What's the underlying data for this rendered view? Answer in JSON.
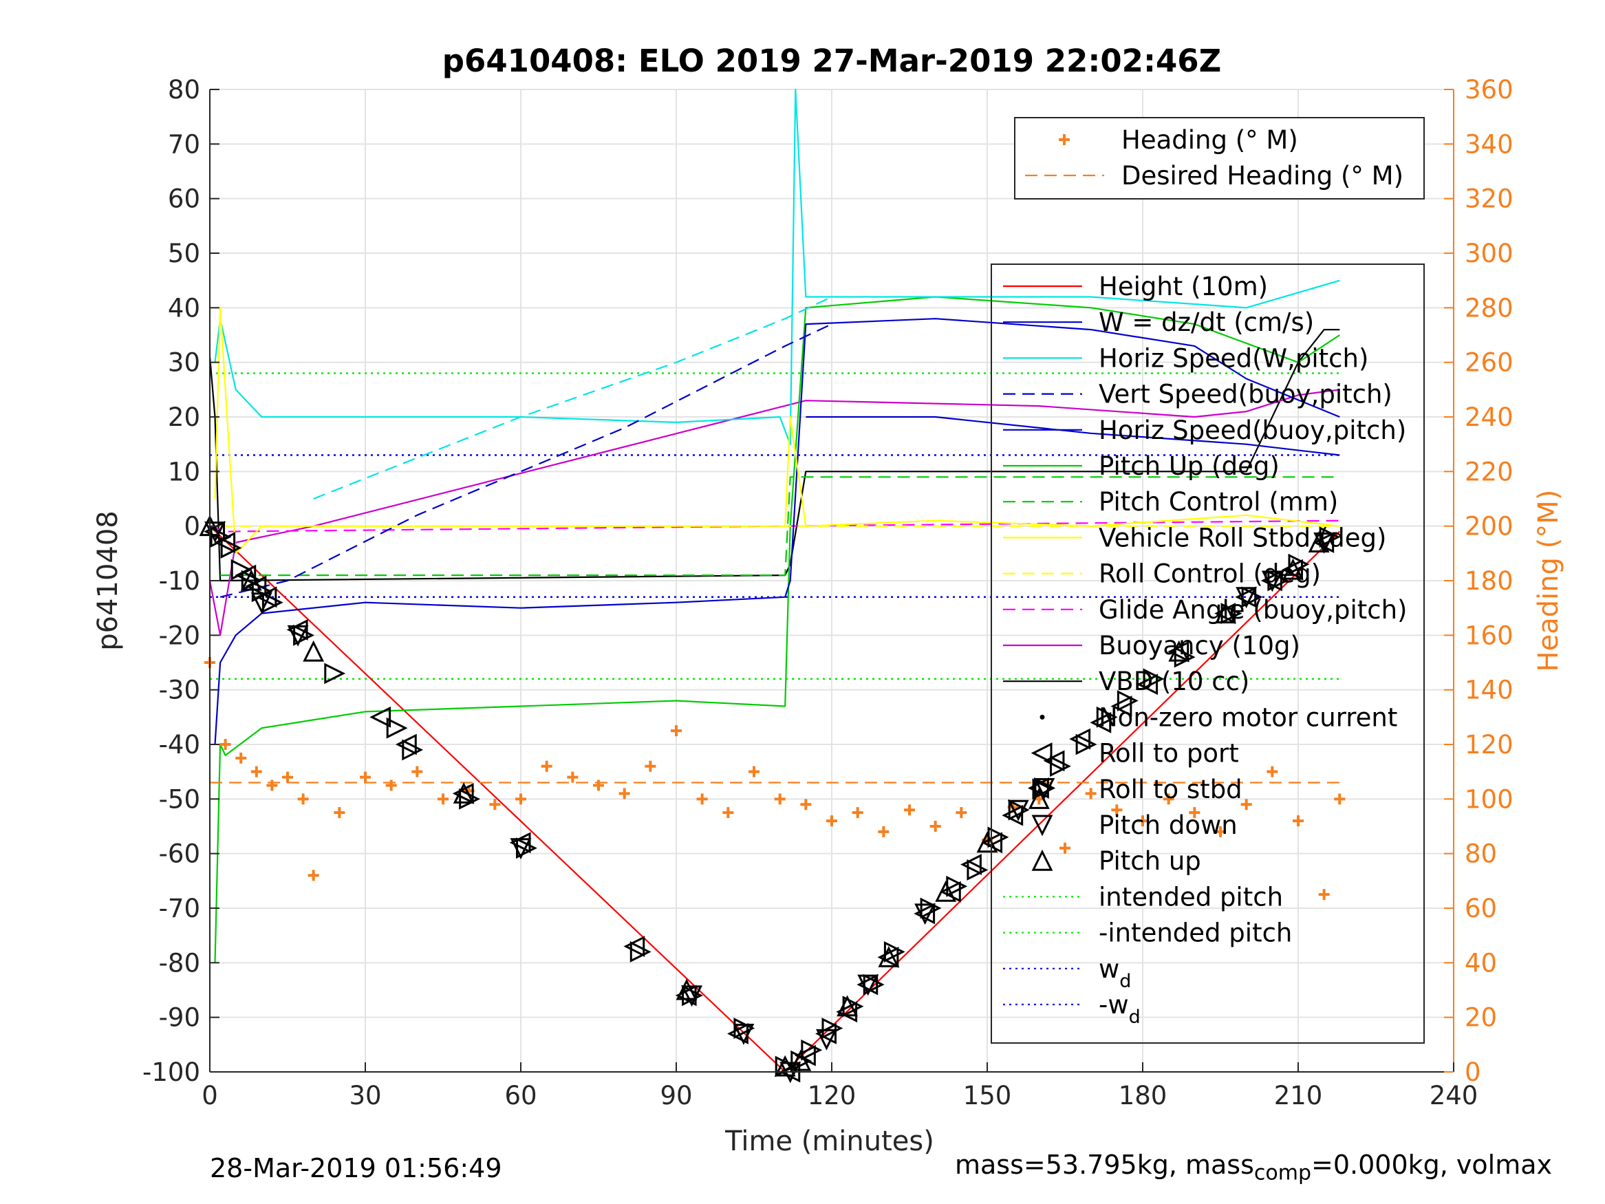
{
  "chart_data": {
    "type": "line",
    "title": "p6410408: ELO 2019 27-Mar-2019 22:02:46Z",
    "xlabel": "Time (minutes)",
    "ylabel_left": "p6410408",
    "ylabel_right": "Heading (°M)",
    "xlim": [
      0,
      240
    ],
    "ylim_left": [
      -100,
      80
    ],
    "ylim_right": [
      0,
      360
    ],
    "xticks": [
      0,
      30,
      60,
      90,
      120,
      150,
      180,
      210,
      240
    ],
    "yticks_left": [
      -100,
      -90,
      -80,
      -70,
      -60,
      -50,
      -40,
      -30,
      -20,
      -10,
      0,
      10,
      20,
      30,
      40,
      50,
      60,
      70,
      80
    ],
    "yticks_right": [
      0,
      20,
      40,
      60,
      80,
      100,
      120,
      140,
      160,
      180,
      200,
      220,
      240,
      260,
      280,
      300,
      320,
      340,
      360
    ],
    "grid": true,
    "colors": {
      "heading": "#f77f1d",
      "right_axis": "#f77f1d"
    },
    "legend_right_axis": [
      {
        "label": "Heading (° M)",
        "style": "marker-plus",
        "color": "#f77f1d"
      },
      {
        "label": "Desired Heading (° M)",
        "style": "dashed",
        "color": "#f77f1d"
      }
    ],
    "legend_left_axis": [
      {
        "label": "Height (10m)",
        "style": "solid",
        "color": "#ff0000"
      },
      {
        "label": "W = dz/dt (cm/s)",
        "style": "solid",
        "color": "#0000cc"
      },
      {
        "label": "Horiz Speed(W,pitch)",
        "style": "solid",
        "color": "#00e5e5"
      },
      {
        "label": "Vert Speed(buoy,pitch)",
        "style": "dashed",
        "color": "#0000cc"
      },
      {
        "label": "Horiz Speed(buoy,pitch)",
        "style": "solid",
        "color": "#0000cc"
      },
      {
        "label": "Pitch Up (deg)",
        "style": "solid",
        "color": "#00cc00"
      },
      {
        "label": "Pitch Control (mm)",
        "style": "dashed",
        "color": "#00cc00"
      },
      {
        "label": "Vehicle Roll Stbd (deg)",
        "style": "solid",
        "color": "#ffff00"
      },
      {
        "label": "Roll Control (deg)",
        "style": "dashed",
        "color": "#ffff00"
      },
      {
        "label": "Glide Angle (buoy,pitch)",
        "style": "dashed",
        "color": "#ff00ff"
      },
      {
        "label": "Buoyancy (10g)",
        "style": "solid",
        "color": "#cc00cc"
      },
      {
        "label": "VBD (10 cc)",
        "style": "solid",
        "color": "#000000"
      },
      {
        "label": "Non-zero motor current",
        "style": "marker-dot",
        "color": "#000000"
      },
      {
        "label": "Roll to port",
        "style": "marker-tri-left",
        "color": "#000000"
      },
      {
        "label": "Roll to stbd",
        "style": "marker-tri-right",
        "color": "#000000"
      },
      {
        "label": "Pitch down",
        "style": "marker-tri-down",
        "color": "#000000"
      },
      {
        "label": "Pitch up",
        "style": "marker-tri-up",
        "color": "#000000"
      },
      {
        "label": "intended pitch",
        "style": "dotted",
        "color": "#00ee00"
      },
      {
        "label": "-intended pitch",
        "style": "dotted",
        "color": "#00ee00"
      },
      {
        "label": "w",
        "sub": "d",
        "style": "dotted",
        "color": "#0000ff"
      },
      {
        "label": "-w",
        "sub": "d",
        "style": "dotted",
        "color": "#0000ff"
      }
    ],
    "series": [
      {
        "name": "Height (10m)",
        "axis": "left",
        "color": "#ff0000",
        "style": "solid",
        "x": [
          0,
          111,
          218
        ],
        "y": [
          0,
          -100,
          -1
        ]
      },
      {
        "name": "VBD (10 cc)",
        "axis": "left",
        "color": "#000000",
        "style": "solid",
        "x": [
          0,
          1,
          2,
          111,
          112,
          115,
          200,
          210,
          215,
          218
        ],
        "y": [
          31,
          20,
          -10,
          -9,
          -7,
          10,
          10,
          30,
          36,
          36
        ]
      },
      {
        "name": "Buoyancy (10g)",
        "axis": "left",
        "color": "#cc00cc",
        "style": "solid",
        "x": [
          0,
          2,
          5,
          10,
          20,
          115,
          160,
          190,
          200,
          210,
          218
        ],
        "y": [
          -10,
          -20,
          -3,
          -2,
          0,
          23,
          22,
          20,
          21,
          24,
          25
        ]
      },
      {
        "name": "Glide Angle (buoy,pitch)",
        "axis": "left",
        "color": "#ff00ff",
        "style": "dashed",
        "x": [
          0,
          3,
          218
        ],
        "y": [
          0,
          -1,
          1
        ]
      },
      {
        "name": "Pitch Up (deg)",
        "axis": "left",
        "color": "#00cc00",
        "style": "solid",
        "x": [
          1,
          2,
          3,
          10,
          30,
          60,
          90,
          111,
          112,
          115,
          140,
          170,
          190,
          210,
          218
        ],
        "y": [
          -80,
          -40,
          -42,
          -37,
          -34,
          -33,
          -32,
          -33,
          0,
          40,
          42,
          40,
          37,
          30,
          35
        ]
      },
      {
        "name": "Pitch Control (mm)",
        "axis": "left",
        "color": "#00cc00",
        "style": "dashed",
        "x": [
          2,
          111,
          112,
          218
        ],
        "y": [
          -9,
          -9,
          9,
          9
        ]
      },
      {
        "name": "Horiz Speed(W,pitch)",
        "axis": "left",
        "color": "#00e5e5",
        "style": "solid",
        "x": [
          1,
          2,
          5,
          10,
          20,
          60,
          90,
          110,
          112,
          113,
          115,
          140,
          170,
          200,
          218
        ],
        "y": [
          30,
          38,
          25,
          20,
          20,
          20,
          19,
          20,
          15,
          80,
          42,
          42,
          42,
          40,
          45
        ]
      },
      {
        "name": "Horiz Speed(buoy,pitch)",
        "axis": "left",
        "color": "#0000cc",
        "style": "solid",
        "x": [
          115,
          140,
          170,
          200,
          218
        ],
        "y": [
          20,
          20,
          17,
          15,
          13
        ]
      },
      {
        "name": "W = dz/dt (cm/s)",
        "axis": "left",
        "color": "#0000cc",
        "style": "solid",
        "x": [
          1,
          2,
          5,
          10,
          30,
          60,
          90,
          111,
          112,
          115,
          140,
          170,
          190,
          200,
          218
        ],
        "y": [
          -40,
          -25,
          -20,
          -16,
          -14,
          -15,
          -14,
          -13,
          -10,
          37,
          38,
          36,
          33,
          27,
          20
        ]
      },
      {
        "name": "Vert Speed(buoy,pitch)",
        "axis": "left",
        "color": "#0000cc",
        "style": "dashed",
        "x": [
          2,
          15,
          40,
          80,
          111,
          120
        ],
        "y": [
          -13,
          -10,
          2,
          18,
          33,
          37
        ]
      },
      {
        "name": "Horiz Speed(W,pitch) dashed",
        "axis": "left",
        "color": "#00e5e5",
        "style": "dashed",
        "x": [
          20,
          60,
          90,
          111,
          120
        ],
        "y": [
          5,
          20,
          30,
          38,
          42
        ]
      },
      {
        "name": "Vehicle Roll Stbd (deg)",
        "axis": "left",
        "color": "#ffff00",
        "style": "solid",
        "x": [
          1,
          2,
          5,
          10,
          30,
          60,
          90,
          111,
          112,
          115,
          140,
          170,
          200,
          218
        ],
        "y": [
          5,
          40,
          -5,
          0,
          0,
          0,
          0,
          0,
          20,
          0,
          1,
          0,
          2,
          0
        ]
      },
      {
        "name": "Roll Control (deg)",
        "axis": "left",
        "color": "#ffff00",
        "style": "dashed",
        "x": [
          2,
          218
        ],
        "y": [
          0,
          0
        ]
      },
      {
        "name": "Heading (° M)",
        "axis": "right",
        "color": "#f77f1d",
        "style": "plus",
        "x": [
          0,
          3,
          6,
          9,
          12,
          15,
          18,
          20,
          25,
          30,
          35,
          40,
          45,
          50,
          55,
          60,
          65,
          70,
          75,
          80,
          85,
          90,
          95,
          100,
          105,
          110,
          115,
          120,
          125,
          130,
          135,
          140,
          145,
          150,
          155,
          160,
          165,
          170,
          175,
          180,
          185,
          190,
          195,
          200,
          205,
          210,
          215,
          218
        ],
        "y": [
          150,
          120,
          115,
          110,
          105,
          108,
          100,
          72,
          95,
          108,
          105,
          110,
          100,
          103,
          98,
          100,
          112,
          108,
          105,
          102,
          112,
          125,
          100,
          95,
          110,
          100,
          98,
          92,
          95,
          88,
          96,
          90,
          95,
          85,
          97,
          100,
          82,
          102,
          96,
          92,
          100,
          95,
          88,
          98,
          110,
          92,
          65,
          100
        ]
      },
      {
        "name": "Desired Heading (° M)",
        "axis": "right",
        "color": "#f77f1d",
        "style": "dashed",
        "x": [
          0,
          218
        ],
        "y": [
          106,
          106
        ]
      }
    ],
    "reference_lines": [
      {
        "name": "intended pitch",
        "axis": "left",
        "y": 28,
        "color": "#00ee00",
        "style": "dotted"
      },
      {
        "name": "-intended pitch",
        "axis": "left",
        "y": -28,
        "color": "#00ee00",
        "style": "dotted"
      },
      {
        "name": "w_d",
        "axis": "left",
        "y": 13,
        "color": "#0000ff",
        "style": "dotted"
      },
      {
        "name": "-w_d",
        "axis": "left",
        "y": -13,
        "color": "#0000ff",
        "style": "dotted"
      }
    ],
    "markers": {
      "axis": "left",
      "roll_to_port": {
        "x": [
          1,
          3,
          7,
          9,
          11,
          17,
          33,
          38,
          49,
          60,
          82,
          92,
          102,
          112,
          115,
          119,
          123,
          127,
          131,
          138,
          143,
          147,
          151,
          155,
          160,
          163,
          168,
          172,
          176,
          181,
          187,
          196,
          200,
          205,
          209,
          215
        ],
        "y": [
          -1,
          -3,
          -9,
          -11,
          -13,
          -19,
          -35,
          -40,
          -49,
          -58,
          -77,
          -86,
          -93,
          -100,
          -97,
          -93,
          -89,
          -84,
          -79,
          -71,
          -67,
          -62,
          -58,
          -53,
          -48,
          -43,
          -39,
          -36,
          -33,
          -29,
          -23,
          -16,
          -13,
          -10,
          -8,
          -3
        ]
      },
      "roll_to_stbd": {
        "x": [
          2,
          4,
          6,
          8,
          10,
          12,
          18,
          24,
          36,
          39,
          50,
          61,
          83,
          93,
          103,
          111,
          114,
          116,
          120,
          124,
          128,
          132,
          139,
          144,
          148,
          152,
          156,
          161,
          164,
          169,
          173,
          177,
          182,
          188,
          197,
          201,
          206,
          210,
          216
        ],
        "y": [
          -2,
          -4,
          -8,
          -10,
          -12,
          -14,
          -20,
          -27,
          -37,
          -41,
          -50,
          -59,
          -78,
          -86,
          -92,
          -99,
          -98,
          -96,
          -92,
          -88,
          -84,
          -78,
          -70,
          -66,
          -63,
          -57,
          -52,
          -48,
          -44,
          -40,
          -35,
          -32,
          -28,
          -24,
          -16,
          -13,
          -10,
          -7,
          -2
        ]
      },
      "pitch_down": {
        "x": [
          1,
          10,
          17,
          60,
          93,
          103,
          112,
          119,
          127,
          138,
          156,
          161,
          200,
          205,
          215
        ],
        "y": [
          -1,
          -14,
          -20,
          -59,
          -86,
          -93,
          -100,
          -94,
          -84,
          -71,
          -52,
          -48,
          -13,
          -10,
          -3
        ]
      },
      "pitch_up": {
        "x": [
          0,
          8,
          20,
          49,
          92,
          111,
          114,
          123,
          131,
          142,
          150,
          160,
          187,
          196,
          209,
          214
        ],
        "y": [
          0,
          -10,
          -23,
          -49,
          -85,
          -99,
          -98,
          -88,
          -79,
          -67,
          -58,
          -50,
          -23,
          -16,
          -8,
          -3
        ]
      }
    },
    "footer_left": "28-Mar-2019 01:56:49",
    "footer_right": {
      "pre": "mass=53.795kg, mass",
      "sub": "comp",
      "post": "=0.000kg, volmax"
    }
  }
}
